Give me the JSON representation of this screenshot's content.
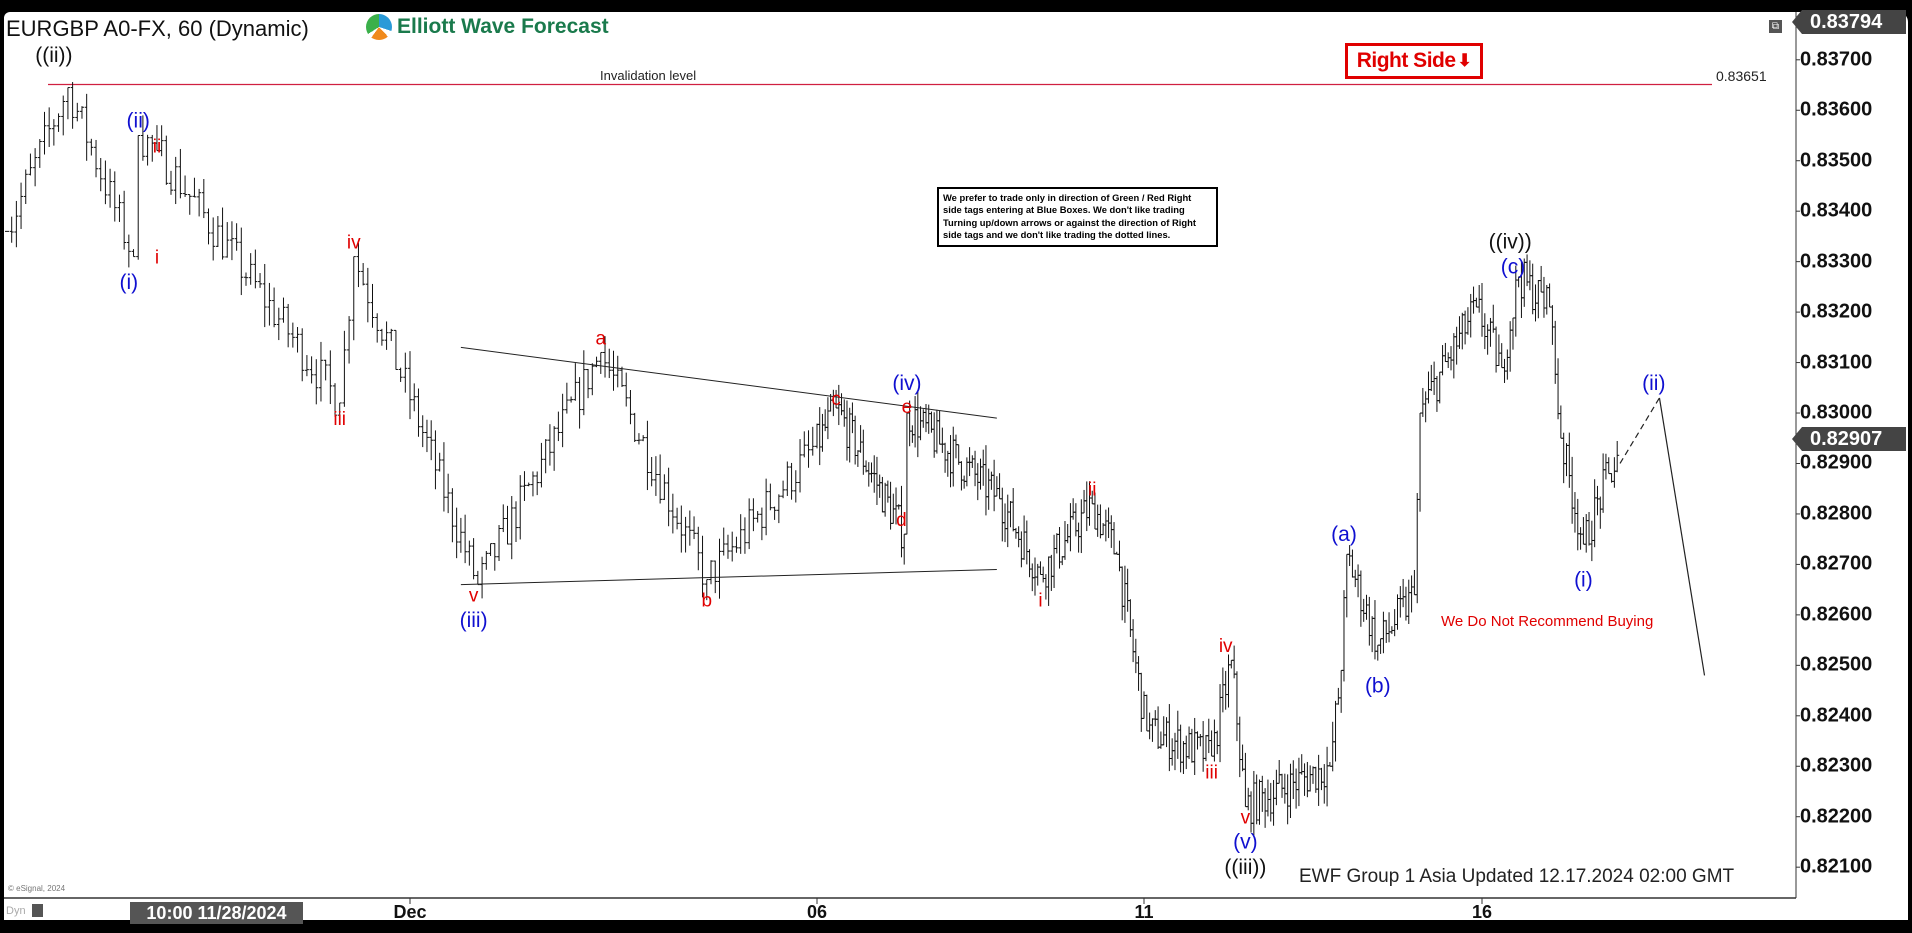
{
  "header": {
    "symbol_title": "EURGBP A0-FX, 60 (Dynamic)",
    "brand": "Elliott Wave Forecast"
  },
  "notes": {
    "disclaimer": "We prefer to trade only in direction of Green / Red Right side tags entering at Blue Boxes. We don't like trading Turning up/down arrows or against the direction of Right side tags and we don't like trading the dotted lines.",
    "right_side": "Right Side",
    "right_side_arrow": "⬇",
    "recommendation": "We Do Not Recommend Buying",
    "updated": "EWF Group 1 Asia Updated 12.17.2024 02:00 GMT",
    "copyright": "© eSignal, 2024",
    "dyn": "Dyn",
    "restore_icon": "window-restore-icon"
  },
  "colors": {
    "red": "#e00000",
    "blue": "#1010d0",
    "black": "#111111",
    "invalidation": "#d02040"
  },
  "chart_data": {
    "type": "ohlc",
    "interval": "60",
    "price_axis": {
      "ticks": [
        "0.83700",
        "0.83600",
        "0.83500",
        "0.83400",
        "0.83300",
        "0.83200",
        "0.83100",
        "0.83000",
        "0.82900",
        "0.82800",
        "0.82700",
        "0.82600",
        "0.82500",
        "0.82400",
        "0.82300",
        "0.82200",
        "0.82100"
      ],
      "high_tag": "0.83794",
      "last_price": "0.82907"
    },
    "time_axis": {
      "start_label": "10:00 11/28/2024",
      "ticks": [
        {
          "label": "Dec",
          "date": "2024-12-02T00:00"
        },
        {
          "label": "06",
          "date": "2024-12-06T00:00"
        },
        {
          "label": "11",
          "date": "2024-12-11T00:00"
        },
        {
          "label": "16",
          "date": "2024-12-16T00:00"
        }
      ]
    },
    "invalidation": {
      "label": "Invalidation level",
      "value": 0.83651,
      "value_label": "0.83651"
    },
    "price_path": [
      [
        "2024-11-28T10:00",
        0.8336
      ],
      [
        "2024-11-28T23:00",
        0.83645
      ],
      [
        "2024-11-29T13:00",
        0.8331
      ],
      [
        "2024-11-29T14:00",
        0.8355
      ],
      [
        "2024-11-29T18:00",
        0.8352
      ],
      [
        "2024-12-01T09:00",
        0.8302
      ],
      [
        "2024-12-01T12:00",
        0.8331
      ],
      [
        "2024-12-02T16:00",
        0.8266
      ],
      [
        "2024-12-03T21:00",
        0.8312
      ],
      [
        "2024-12-04T22:00",
        0.8267
      ],
      [
        "2024-12-06T07:00",
        0.8301
      ],
      [
        "2024-12-07T08:00",
        0.8276
      ],
      [
        "2024-12-07T09:00",
        0.83
      ],
      [
        "2024-12-08T19:00",
        0.8283
      ],
      [
        "2024-12-09T10:00",
        0.8268
      ],
      [
        "2024-12-10T05:00",
        0.8282
      ],
      [
        "2024-12-10T14:00",
        0.8272
      ],
      [
        "2024-12-11T01:00",
        0.8237
      ],
      [
        "2024-12-12T00:00",
        0.8232
      ],
      [
        "2024-12-12T07:00",
        0.8251
      ],
      [
        "2024-12-12T12:00",
        0.8222
      ],
      [
        "2024-12-13T18:00",
        0.823
      ],
      [
        "2024-12-13T22:00",
        0.8249
      ],
      [
        "2024-12-14T00:00",
        0.8272
      ],
      [
        "2024-12-14T11:00",
        0.8254
      ],
      [
        "2024-12-15T00:00",
        0.8264
      ],
      [
        "2024-12-15T02:00",
        0.83
      ],
      [
        "2024-12-15T22:00",
        0.8321
      ],
      [
        "2024-12-16T07:00",
        0.8309
      ],
      [
        "2024-12-16T13:00",
        0.8327
      ],
      [
        "2024-12-17T00:00",
        0.8321
      ],
      [
        "2024-12-17T04:00",
        0.8295
      ],
      [
        "2024-12-17T12:00",
        0.8274
      ],
      [
        "2024-12-17T21:00",
        0.8288
      ],
      [
        "2024-12-18T01:00",
        0.82907
      ]
    ],
    "projection": {
      "dashed": [
        [
          "2024-12-18T01:00",
          0.829
        ],
        [
          "2024-12-18T15:00",
          0.8303
        ]
      ],
      "solid": [
        [
          "2024-12-18T15:00",
          0.8303
        ],
        [
          "2024-12-19T07:00",
          0.8248
        ]
      ]
    },
    "triangle": {
      "upper": [
        [
          "2024-12-02T12:00",
          0.8313
        ],
        [
          "2024-12-08T18:00",
          0.8299
        ]
      ],
      "lower": [
        [
          "2024-12-02T12:00",
          0.8266
        ],
        [
          "2024-12-08T18:00",
          0.8269
        ]
      ]
    },
    "wave_labels": [
      {
        "text": "((ii))",
        "color": "black",
        "t": "2024-11-28T20:00",
        "p": 0.83727
      },
      {
        "text": "(ii)",
        "color": "blue",
        "t": "2024-11-29T14:00",
        "p": 0.8358
      },
      {
        "text": "ii",
        "color": "red",
        "t": "2024-11-29T18:00",
        "p": 0.8353
      },
      {
        "text": "i",
        "color": "red",
        "t": "2024-11-29T18:00",
        "p": 0.8331
      },
      {
        "text": "(i)",
        "color": "blue",
        "t": "2024-11-29T12:00",
        "p": 0.8326
      },
      {
        "text": "iv",
        "color": "red",
        "t": "2024-12-01T12:00",
        "p": 0.8334
      },
      {
        "text": "iii",
        "color": "red",
        "t": "2024-12-01T09:00",
        "p": 0.8299
      },
      {
        "text": "v",
        "color": "red",
        "t": "2024-12-02T15:00",
        "p": 0.8264
      },
      {
        "text": "(iii)",
        "color": "blue",
        "t": "2024-12-02T15:00",
        "p": 0.8259
      },
      {
        "text": "a",
        "color": "red",
        "t": "2024-12-03T21:00",
        "p": 0.8315
      },
      {
        "text": "b",
        "color": "red",
        "t": "2024-12-04T22:00",
        "p": 0.8263
      },
      {
        "text": "c",
        "color": "red",
        "t": "2024-12-06T07:00",
        "p": 0.8303
      },
      {
        "text": "(iv)",
        "color": "blue",
        "t": "2024-12-07T09:00",
        "p": 0.8306
      },
      {
        "text": "e",
        "color": "red",
        "t": "2024-12-07T09:00",
        "p": 0.8302
      },
      {
        "text": "d",
        "color": "red",
        "t": "2024-12-07T07:00",
        "p": 0.8279
      },
      {
        "text": "ii",
        "color": "red",
        "t": "2024-12-10T05:00",
        "p": 0.8285
      },
      {
        "text": "i",
        "color": "red",
        "t": "2024-12-09T10:00",
        "p": 0.8263
      },
      {
        "text": "iv",
        "color": "red",
        "t": "2024-12-12T05:00",
        "p": 0.8254
      },
      {
        "text": "iii",
        "color": "red",
        "t": "2024-12-12T00:00",
        "p": 0.8229
      },
      {
        "text": "v",
        "color": "red",
        "t": "2024-12-12T12:00",
        "p": 0.822
      },
      {
        "text": "(v)",
        "color": "blue",
        "t": "2024-12-12T12:00",
        "p": 0.8216
      },
      {
        "text": "((iii))",
        "color": "black",
        "t": "2024-12-12T12:00",
        "p": 0.821
      },
      {
        "text": "(a)",
        "color": "blue",
        "t": "2024-12-13T23:00",
        "p": 0.8276
      },
      {
        "text": "(b)",
        "color": "blue",
        "t": "2024-12-14T11:00",
        "p": 0.8246
      },
      {
        "text": "((iv))",
        "color": "black",
        "t": "2024-12-16T10:00",
        "p": 0.8334
      },
      {
        "text": "(c)",
        "color": "blue",
        "t": "2024-12-16T11:00",
        "p": 0.833
      },
      {
        "text": "(i)",
        "color": "blue",
        "t": "2024-12-17T12:00",
        "p": 0.8267
      },
      {
        "text": "(ii)",
        "color": "blue",
        "t": "2024-12-18T13:00",
        "p": 0.8306
      }
    ]
  }
}
